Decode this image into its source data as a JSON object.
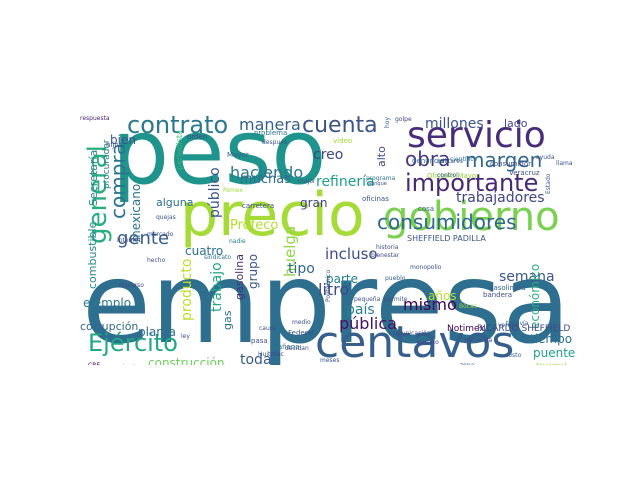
{
  "words": [
    {
      "text": "empresa",
      "color": "#2e6e8e"
    },
    {
      "text": "peso",
      "color": "#1f948c"
    },
    {
      "text": "precio",
      "color": "#a5db36"
    },
    {
      "text": "gobierno",
      "color": "#7ad151"
    },
    {
      "text": "centavos",
      "color": "#355f8d"
    },
    {
      "text": "servicio",
      "color": "#472d7b"
    },
    {
      "text": "importante",
      "color": "#482878"
    },
    {
      "text": "consumidores",
      "color": "#31688e"
    },
    {
      "text": "Ejército",
      "color": "#22a884"
    },
    {
      "text": "contrato",
      "color": "#2a788e"
    },
    {
      "text": "cuenta",
      "color": "#3b528b"
    },
    {
      "text": "margen",
      "color": "#31688e"
    },
    {
      "text": "obra",
      "color": "#443983"
    },
    {
      "text": "general",
      "color": "#29af7f"
    },
    {
      "text": "manera",
      "color": "#355f8d"
    },
    {
      "text": "compra",
      "color": "#2c728e"
    },
    {
      "text": "gente",
      "color": "#365c8d"
    },
    {
      "text": "trabajadores",
      "color": "#414487"
    },
    {
      "text": "refinería",
      "color": "#1f9e89"
    },
    {
      "text": "haciendo",
      "color": "#2a788e"
    },
    {
      "text": "muchas",
      "color": "#2f6c8e"
    },
    {
      "text": "incluso",
      "color": "#3e4a89"
    },
    {
      "text": "Profeco",
      "color": "#b5de2b"
    },
    {
      "text": "semana",
      "color": "#39568c"
    },
    {
      "text": "cuatro",
      "color": "#2d708e"
    },
    {
      "text": "litro",
      "color": "#3e4989"
    },
    {
      "text": "mismo",
      "color": "#440154"
    },
    {
      "text": "pública",
      "color": "#471063"
    },
    {
      "text": "huelga",
      "color": "#90d743"
    },
    {
      "text": "país",
      "color": "#26828e"
    },
    {
      "text": "gran",
      "color": "#433e85"
    },
    {
      "text": "tipo",
      "color": "#31688e"
    },
    {
      "text": "creo",
      "color": "#3f4788"
    },
    {
      "text": "millones",
      "color": "#3b528b"
    },
    {
      "text": "ejemplo",
      "color": "#2a788e"
    },
    {
      "text": "toda",
      "color": "#38598c"
    },
    {
      "text": "trabajo",
      "color": "#22a884"
    },
    {
      "text": "producto",
      "color": "#bddf26"
    },
    {
      "text": "construcción",
      "color": "#6ccd5a"
    },
    {
      "text": "tiempo",
      "color": "#2d708e"
    },
    {
      "text": "puente",
      "color": "#1fa188"
    },
    {
      "text": "económico",
      "color": "#29af7f"
    },
    {
      "text": "público",
      "color": "#3b528b"
    },
    {
      "text": "mexicano",
      "color": "#2c728e"
    },
    {
      "text": "Secretaría",
      "color": "#26828e"
    },
    {
      "text": "combustible",
      "color": "#238a8d"
    },
    {
      "text": "corrupción",
      "color": "#31688e"
    },
    {
      "text": "planta",
      "color": "#2e6e8e"
    },
    {
      "text": "parte",
      "color": "#26818e"
    },
    {
      "text": "años",
      "color": "#b8de29"
    },
    {
      "text": "bien",
      "color": "#3b528b"
    },
    {
      "text": "gas",
      "color": "#2c728e"
    },
    {
      "text": "gasolina",
      "color": "#46307e"
    },
    {
      "text": "grupo",
      "color": "#3b528b"
    },
    {
      "text": "alguna",
      "color": "#2d708e"
    },
    {
      "text": "alto",
      "color": "#3e4a89"
    },
    {
      "text": "lado",
      "color": "#3f4788"
    },
    {
      "text": "hijos",
      "color": "#3b528b"
    },
    {
      "text": "procurador",
      "color": "#2a788e"
    },
    {
      "text": "Notimex",
      "color": "#440154"
    },
    {
      "text": "RICARDO SHEFFIELD",
      "color": "#3e4a89"
    },
    {
      "text": "SHEFFIELD PADILLA",
      "color": "#3b528b"
    },
    {
      "text": "respuesta",
      "color": "#481f70"
    },
    {
      "text": "golpe",
      "color": "#3e4a89"
    },
    {
      "text": "hoy",
      "color": "#355f8d"
    },
    {
      "text": "siempre",
      "color": "#a0da39"
    },
    {
      "text": "problema",
      "color": "#2a788e"
    },
    {
      "text": "orden",
      "color": "#404688"
    },
    {
      "text": "después",
      "color": "#3b528b"
    },
    {
      "text": "periodista",
      "color": "#35b779"
    },
    {
      "text": "Mayor",
      "color": "#355f8d"
    },
    {
      "text": "video",
      "color": "#a2da37"
    },
    {
      "text": "denuncia",
      "color": "#31688e"
    },
    {
      "text": "científico",
      "color": "#2c728e"
    },
    {
      "text": "consumidor",
      "color": "#3e4a89"
    },
    {
      "text": "Veracruz",
      "color": "#3b528b"
    },
    {
      "text": "Oficialía Mayor",
      "color": "#95d840"
    },
    {
      "text": "mejor",
      "color": "#3b528b"
    },
    {
      "text": "programa",
      "color": "#2c728e"
    },
    {
      "text": "oficinas",
      "color": "#3b528b"
    },
    {
      "text": "carretera",
      "color": "#3e4a89"
    },
    {
      "text": "cosa",
      "color": "#355f8d"
    },
    {
      "text": "mercado",
      "color": "#3b528b"
    },
    {
      "text": "internet",
      "color": "#3e4a89"
    },
    {
      "text": "nadie",
      "color": "#2a788e"
    },
    {
      "text": "sindicato",
      "color": "#2c728e"
    },
    {
      "text": "bienestar",
      "color": "#3e4989"
    },
    {
      "text": "historia",
      "color": "#3b528b"
    },
    {
      "text": "pueblo",
      "color": "#355f8d"
    },
    {
      "text": "gasolinera",
      "color": "#355f8d"
    },
    {
      "text": "bandera",
      "color": "#3e4a89"
    },
    {
      "text": "causa",
      "color": "#3b528b"
    },
    {
      "text": "mañana",
      "color": "#2a788e"
    },
    {
      "text": "Huitzilac",
      "color": "#3e4a89"
    },
    {
      "text": "Federal",
      "color": "#3b528b"
    },
    {
      "text": "decidan",
      "color": "#3e4a89"
    },
    {
      "text": "pasa",
      "color": "#3b528b"
    },
    {
      "text": "meses",
      "color": "#3b528b"
    },
    {
      "text": "pasado",
      "color": "#3e4a89"
    },
    {
      "text": "comunicación",
      "color": "#3b528b"
    },
    {
      "text": "zona",
      "color": "#3b528b"
    },
    {
      "text": "costo",
      "color": "#355f8d"
    },
    {
      "text": "Nacional",
      "color": "#a0da39"
    },
    {
      "text": "Sinaloa",
      "color": "#3b528b"
    },
    {
      "text": "CRE",
      "color": "#440154"
    },
    {
      "text": "discurso",
      "color": "#3e4a89"
    },
    {
      "text": "hecho",
      "color": "#3b528b"
    },
    {
      "text": "verdad",
      "color": "#3b528b"
    },
    {
      "text": "todavía",
      "color": "#355f8d"
    },
    {
      "text": "Hacienda",
      "color": "#3e4a89"
    },
    {
      "text": "permite",
      "color": "#3b528b"
    },
    {
      "text": "pequeña",
      "color": "#3b528b"
    },
    {
      "text": "medio",
      "color": "#3b528b"
    },
    {
      "text": "ley",
      "color": "#3e4a89"
    },
    {
      "text": "quejas",
      "color": "#3b528b"
    },
    {
      "text": "Pemex",
      "color": "#a2da37"
    },
    {
      "text": "llama",
      "color": "#3b528b"
    },
    {
      "text": "aunque",
      "color": "#3b528b"
    },
    {
      "text": "militares",
      "color": "#3b528b"
    },
    {
      "text": "ayuda",
      "color": "#3b528b"
    },
    {
      "text": "Estado",
      "color": "#3b528b"
    },
    {
      "text": "sido",
      "color": "#3b528b"
    },
    {
      "text": "Bocas",
      "color": "#95d840"
    },
    {
      "text": "control",
      "color": "#3b528b"
    },
    {
      "text": "Politécnico",
      "color": "#3b528b"
    },
    {
      "text": "monopolio",
      "color": "#3b528b"
    }
  ]
}
